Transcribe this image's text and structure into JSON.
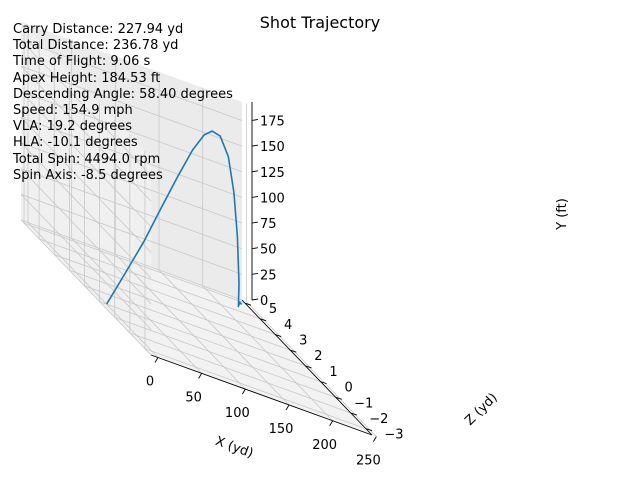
{
  "chart_data": {
    "type": "line",
    "projection": "3d",
    "title": "Shot Trajectory",
    "xlabel": "X (yd)",
    "ylabel": "Y (ft)",
    "zlabel": "Z (yd)",
    "x_ticks": [
      "0",
      "50",
      "100",
      "150",
      "200",
      "250"
    ],
    "y_ticks": [
      "0",
      "25",
      "50",
      "75",
      "100",
      "125",
      "150",
      "175"
    ],
    "z_ticks": [
      "−3",
      "−2",
      "−1",
      "0",
      "1",
      "2",
      "3",
      "4",
      "5"
    ],
    "xlim": [
      -8,
      245
    ],
    "ylim": [
      0,
      193
    ],
    "zlim": [
      -3.4,
      5.2
    ],
    "grid": true,
    "pane_color": "#f2f2f2",
    "line_color": "#1f77b4",
    "series": [
      {
        "points": [
          {
            "x": 0,
            "y": 0,
            "z": 0
          },
          {
            "x": 22,
            "y": 36,
            "z": 0.05
          },
          {
            "x": 46,
            "y": 72,
            "z": 0.2
          },
          {
            "x": 71,
            "y": 110,
            "z": 0.45
          },
          {
            "x": 96,
            "y": 143,
            "z": 0.8
          },
          {
            "x": 120,
            "y": 168,
            "z": 1.25
          },
          {
            "x": 142,
            "y": 182,
            "z": 1.75
          },
          {
            "x": 158,
            "y": 184.5,
            "z": 2.15
          },
          {
            "x": 175,
            "y": 178,
            "z": 2.6
          },
          {
            "x": 193,
            "y": 156,
            "z": 3.1
          },
          {
            "x": 208,
            "y": 118,
            "z": 3.6
          },
          {
            "x": 219,
            "y": 72,
            "z": 4.0
          },
          {
            "x": 226,
            "y": 24,
            "z": 4.3
          },
          {
            "x": 227.9,
            "y": 0,
            "z": 4.45
          },
          {
            "x": 232,
            "y": 3,
            "z": 4.6
          },
          {
            "x": 236.8,
            "y": 0,
            "z": 4.75
          }
        ]
      }
    ]
  },
  "stats": {
    "carry": "Carry Distance: 227.94 yd",
    "total": "Total Distance: 236.78 yd",
    "flight_time": "Time of Flight: 9.06 s",
    "apex": "Apex Height: 184.53 ft",
    "descent": "Descending Angle: 58.40 degrees",
    "speed": "Speed: 154.9 mph",
    "vla": "VLA: 19.2 degrees",
    "hla": "HLA: -10.1 degrees",
    "spin": "Total Spin: 4494.0 rpm",
    "spin_axis": "Spin Axis: -8.5 degrees"
  }
}
